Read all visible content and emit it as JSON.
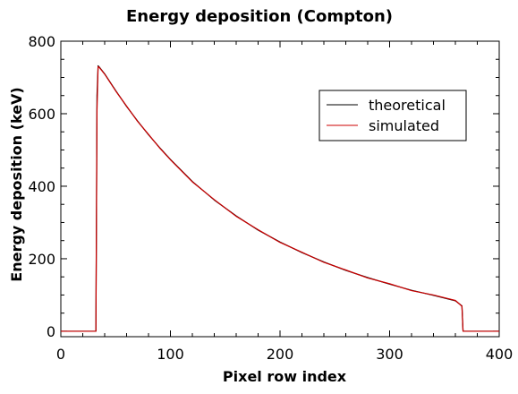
{
  "chart_data": {
    "type": "line",
    "title": "Energy deposition (Compton)",
    "xlabel": "Pixel row index",
    "ylabel": "Energy deposition (keV)",
    "xlim": [
      0,
      400
    ],
    "ylim": [
      -15,
      800
    ],
    "x_ticks": [
      0,
      100,
      200,
      300,
      400
    ],
    "y_ticks": [
      0,
      200,
      400,
      600,
      800
    ],
    "x_tick_labels": [
      "0",
      "100",
      "200",
      "300",
      "400"
    ],
    "y_tick_labels": [
      "0",
      "200",
      "400",
      "600",
      "800"
    ],
    "grid": false,
    "legend_position": "top-right",
    "series": [
      {
        "name": "theoretical",
        "color": "#000000",
        "x": [
          0,
          32,
          33,
          34,
          35,
          40,
          50,
          60,
          70,
          80,
          90,
          100,
          120,
          140,
          160,
          180,
          200,
          220,
          240,
          260,
          280,
          300,
          320,
          340,
          360,
          366,
          367,
          368,
          400
        ],
        "y": [
          0,
          0,
          650,
          732,
          729,
          710,
          664,
          620,
          580,
          542,
          507,
          474,
          413,
          362,
          318,
          279,
          246,
          217,
          191,
          168,
          148,
          130,
          113,
          99,
          84,
          70,
          0,
          0,
          0
        ]
      },
      {
        "name": "simulated",
        "color": "#cc0000",
        "x": [
          0,
          32,
          33,
          34,
          35,
          40,
          50,
          60,
          70,
          80,
          90,
          100,
          120,
          140,
          160,
          180,
          200,
          220,
          240,
          260,
          280,
          300,
          320,
          340,
          360,
          366,
          367,
          368,
          400
        ],
        "y": [
          0,
          0,
          610,
          730,
          728,
          709,
          663,
          621,
          579,
          543,
          506,
          473,
          412,
          363,
          317,
          280,
          245,
          218,
          190,
          169,
          147,
          131,
          112,
          100,
          85,
          69,
          0,
          0,
          0
        ]
      }
    ]
  }
}
